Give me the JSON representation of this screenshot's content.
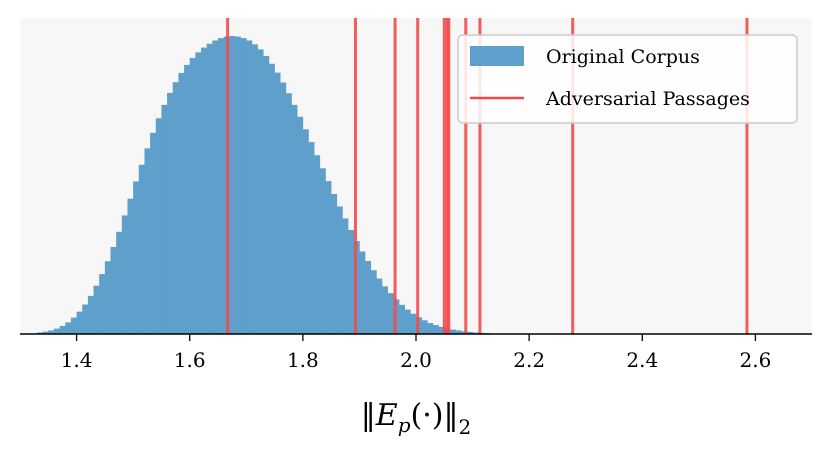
{
  "chart_data": {
    "type": "bar",
    "subtype": "histogram-with-vertical-lines",
    "title": "",
    "xlabel": "‖E_p(·)‖₂",
    "ylabel": "",
    "xlim": [
      1.3,
      2.7
    ],
    "ylim": [
      0,
      1.0
    ],
    "x_ticks": [
      "1.4",
      "1.6",
      "1.8",
      "2.0",
      "2.2",
      "2.4",
      "2.6"
    ],
    "y_ticks_visible": false,
    "grid": false,
    "background": "#f7f7f7",
    "legend_position": "top-right",
    "series": [
      {
        "name": "Original Corpus",
        "kind": "histogram",
        "color": "#5f9fcb",
        "bin_width": 0.01,
        "bin_start": 1.33,
        "density": [
          0.005,
          0.008,
          0.012,
          0.018,
          0.027,
          0.039,
          0.055,
          0.075,
          0.099,
          0.128,
          0.162,
          0.201,
          0.244,
          0.292,
          0.343,
          0.398,
          0.454,
          0.512,
          0.568,
          0.623,
          0.675,
          0.724,
          0.769,
          0.809,
          0.845,
          0.876,
          0.903,
          0.926,
          0.945,
          0.961,
          0.974,
          0.985,
          0.993,
          0.998,
          1.0,
          0.998,
          0.993,
          0.985,
          0.972,
          0.955,
          0.933,
          0.907,
          0.877,
          0.844,
          0.808,
          0.769,
          0.729,
          0.687,
          0.644,
          0.6,
          0.556,
          0.513,
          0.47,
          0.428,
          0.388,
          0.349,
          0.312,
          0.277,
          0.245,
          0.214,
          0.186,
          0.16,
          0.137,
          0.116,
          0.098,
          0.082,
          0.068,
          0.056,
          0.046,
          0.037,
          0.03,
          0.024,
          0.019,
          0.015,
          0.012,
          0.009,
          0.007,
          0.005,
          0.004,
          0.003
        ]
      },
      {
        "name": "Adversarial Passages",
        "kind": "vlines",
        "color": "#f04b4b",
        "x": [
          1.667,
          1.893,
          1.963,
          2.003,
          2.05,
          2.055,
          2.058,
          2.088,
          2.113,
          2.277,
          2.585
        ]
      }
    ]
  }
}
